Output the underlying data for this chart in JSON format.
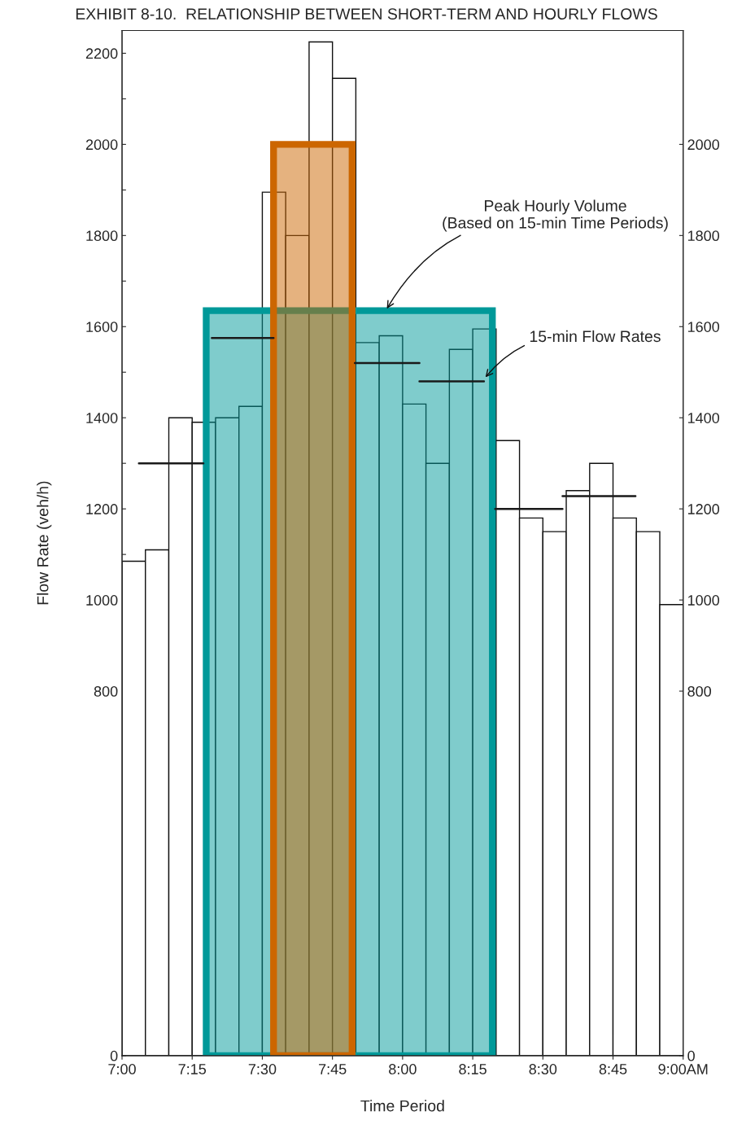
{
  "chart_data": {
    "type": "histogram",
    "title": "EXHIBIT 8-10.  RELATIONSHIP BETWEEN SHORT-TERM AND HOURLY FLOWS",
    "xlabel": "Time Period",
    "ylabel": "Flow Rate (veh/h)",
    "bins": [
      7,
      7.0833,
      7.1667,
      7.25,
      7.3333,
      7.4167,
      7.5,
      7.5833,
      7.6667,
      7.75,
      7.8333,
      7.9167,
      8,
      8.0833,
      8.1667,
      8.25,
      8.3333,
      8.4167,
      8.5,
      8.5833,
      8.6667,
      8.75,
      8.8333,
      8.9167,
      9
    ],
    "values": [
      1085,
      1110,
      1400,
      1390,
      1400,
      1425,
      1895,
      1800,
      2225,
      2145,
      1565,
      1580,
      1430,
      1300,
      1550,
      1595,
      1350,
      1180,
      1150,
      1240,
      1300,
      1180,
      1150,
      990
    ],
    "color": "#ffffff",
    "series": [
      {
        "type": "area",
        "color": "#009999",
        "x": [
          7.3,
          8.32
        ],
        "values": [
          1635,
          1635
        ]
      },
      {
        "type": "area",
        "color": "#cc6600",
        "x": [
          7.54,
          7.82
        ],
        "values": [
          2000,
          2000
        ]
      },
      {
        "type": "line",
        "color": "#1a1a1a",
        "x": [
          7.06,
          7.29,
          null,
          7.32,
          7.54,
          null,
          7.83,
          8.06,
          null,
          8.06,
          8.29,
          null,
          8.33,
          8.57,
          null,
          8.57,
          8.83
        ],
        "values": [
          1300,
          1300,
          null,
          1575,
          1575,
          null,
          1520,
          1520,
          null,
          1480,
          1480,
          null,
          1200,
          1200,
          null,
          1228,
          1228
        ]
      }
    ],
    "xlim": [
      7,
      9
    ],
    "xticks": [
      {
        "value": 7,
        "label": "7:00"
      },
      {
        "value": 7.25,
        "label": "7:15"
      },
      {
        "value": 7.5,
        "label": "7:30"
      },
      {
        "value": 7.75,
        "label": "7:45"
      },
      {
        "value": 8,
        "label": "8:00"
      },
      {
        "value": 8.25,
        "label": "8:15"
      },
      {
        "value": 8.5,
        "label": "8:30"
      },
      {
        "value": 8.75,
        "label": "8:45"
      },
      {
        "value": 9,
        "label": "9:00AM"
      }
    ],
    "ylim": [
      0,
      2250
    ],
    "yticks": [
      0,
      800,
      {
        "value": 900,
        "label": null
      },
      1000,
      {
        "value": 1100,
        "label": null
      },
      1200,
      {
        "value": 1300,
        "label": null
      },
      1400,
      {
        "value": 1500,
        "label": null
      },
      1600,
      {
        "value": 1700,
        "label": null
      },
      1800,
      {
        "value": 1900,
        "label": null
      },
      2000,
      {
        "value": 2100,
        "label": null
      },
      2200
    ],
    "y2lim": [
      0,
      2250
    ],
    "y2ticks": [
      0,
      800,
      1000,
      1200,
      1400,
      1600,
      1800,
      2000
    ],
    "annotations": [
      {
        "text": "Peak Hourly Volume\n(Based on 15-min Time Periods)",
        "x": 7.94,
        "y": 1635
      },
      {
        "text": "15-min Flow Rates",
        "x": 8.29,
        "y": 1485
      }
    ],
    "grid": false,
    "legend": false
  }
}
